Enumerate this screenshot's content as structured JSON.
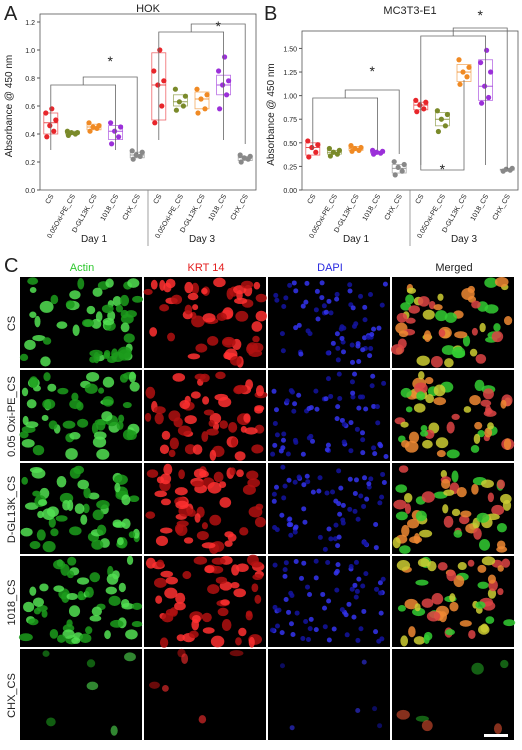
{
  "chart_data": [
    {
      "type": "box",
      "panel": "A",
      "title": "HOK",
      "y_label": "Absorbance @ 450 nm",
      "categories": [
        "CS",
        "0.05Oxi-PE_CS",
        "D-GL13K_CS",
        "1018_CS",
        "CHX_CS",
        "CS",
        "0.05Oxi-PE_CS",
        "D-GL13K_CS",
        "1018_CS",
        "CHX_CS"
      ],
      "groups": [
        "Day 1",
        "Day 3"
      ],
      "colors": [
        "#e8262b",
        "#7a8a2a",
        "#f08a24",
        "#9b30d9",
        "#888888",
        "#e8262b",
        "#7a8a2a",
        "#f08a24",
        "#9b30d9",
        "#888888"
      ],
      "boxes": [
        [
          0.4,
          0.48,
          0.55
        ],
        [
          0.4,
          0.41,
          0.42
        ],
        [
          0.43,
          0.45,
          0.47
        ],
        [
          0.36,
          0.42,
          0.46
        ],
        [
          0.23,
          0.25,
          0.27
        ],
        [
          0.5,
          0.75,
          0.98
        ],
        [
          0.6,
          0.63,
          0.68
        ],
        [
          0.58,
          0.65,
          0.7
        ],
        [
          0.68,
          0.75,
          0.82
        ],
        [
          0.21,
          0.23,
          0.24
        ]
      ],
      "points": [
        [
          0.38,
          0.42,
          0.46,
          0.5,
          0.55,
          0.58
        ],
        [
          0.39,
          0.4,
          0.41,
          0.41,
          0.42
        ],
        [
          0.42,
          0.44,
          0.45,
          0.46,
          0.48
        ],
        [
          0.33,
          0.38,
          0.42,
          0.45,
          0.48
        ],
        [
          0.22,
          0.24,
          0.25,
          0.27,
          0.28
        ],
        [
          0.48,
          0.6,
          0.75,
          0.78,
          0.85,
          1.0
        ],
        [
          0.57,
          0.6,
          0.63,
          0.67,
          0.72
        ],
        [
          0.55,
          0.58,
          0.65,
          0.68,
          0.72
        ],
        [
          0.58,
          0.68,
          0.75,
          0.78,
          0.85,
          0.95
        ],
        [
          0.2,
          0.22,
          0.23,
          0.24,
          0.25
        ]
      ],
      "ylim": [
        0,
        1.2
      ],
      "yticks": [
        {
          "value": 0,
          "label": "0.0"
        },
        0.2,
        0.4,
        0.6,
        0.8,
        {
          "value": 1,
          "label": "1.0"
        },
        1.2
      ],
      "annotations": [
        "*",
        "*"
      ]
    },
    {
      "type": "box",
      "panel": "B",
      "title": "MC3T3-E1",
      "y_label": "Absorbance @ 450 nm",
      "categories": [
        "CS",
        "0.05Oxi-PE_CS",
        "D-GL13K_CS",
        "1018_CS",
        "CHX_CS",
        "CS",
        "0.05Oxi-PE_CS",
        "D-GL13K_CS",
        "1018_CS",
        "CHX_CS"
      ],
      "groups": [
        "Day 1",
        "Day 3"
      ],
      "colors": [
        "#e8262b",
        "#7a8a2a",
        "#f08a24",
        "#9b30d9",
        "#888888",
        "#e8262b",
        "#7a8a2a",
        "#f08a24",
        "#9b30d9",
        "#888888"
      ],
      "boxes": [
        [
          0.37,
          0.45,
          0.5
        ],
        [
          0.38,
          0.4,
          0.42
        ],
        [
          0.42,
          0.44,
          0.46
        ],
        [
          0.39,
          0.4,
          0.41
        ],
        [
          0.18,
          0.23,
          0.27
        ],
        [
          0.85,
          0.9,
          0.93
        ],
        [
          0.68,
          0.75,
          0.82
        ],
        [
          1.15,
          1.25,
          1.33
        ],
        [
          0.95,
          1.1,
          1.38
        ],
        [
          0.21,
          0.215,
          0.22
        ]
      ],
      "points": [
        [
          0.35,
          0.4,
          0.45,
          0.48,
          0.52
        ],
        [
          0.36,
          0.38,
          0.4,
          0.42,
          0.44
        ],
        [
          0.41,
          0.42,
          0.44,
          0.45,
          0.47
        ],
        [
          0.38,
          0.39,
          0.4,
          0.41,
          0.42
        ],
        [
          0.16,
          0.2,
          0.24,
          0.27,
          0.3
        ],
        [
          0.83,
          0.86,
          0.9,
          0.93,
          0.95
        ],
        [
          0.62,
          0.68,
          0.75,
          0.8,
          0.84
        ],
        [
          1.12,
          1.2,
          1.25,
          1.3,
          1.38
        ],
        [
          0.92,
          0.98,
          1.1,
          1.25,
          1.35,
          1.48
        ],
        [
          0.2,
          0.21,
          0.22,
          0.23
        ]
      ],
      "ylim": [
        0,
        1.6
      ],
      "yticks": [
        {
          "value": 0,
          "label": "0.00"
        },
        0.25,
        {
          "value": 0.5,
          "label": "0.50"
        },
        0.75,
        {
          "value": 1,
          "label": "1.00"
        },
        1.25,
        {
          "value": 1.5,
          "label": "1.50"
        }
      ],
      "annotations": [
        "*",
        "*",
        "*"
      ]
    }
  ],
  "panel_c": {
    "letter": "C",
    "columns": [
      "Actin",
      "KRT 14",
      "DAPI",
      "Merged"
    ],
    "rows": [
      "CS",
      "0.05 Oxi-PE_CS",
      "D-GL13K_CS",
      "1018_CS",
      "CHX_CS"
    ]
  }
}
